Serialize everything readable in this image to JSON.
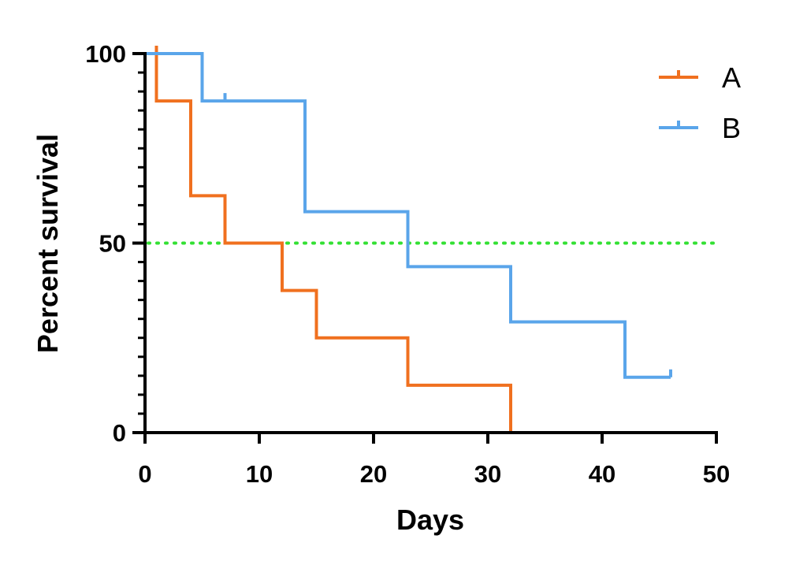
{
  "chart_data": {
    "type": "line",
    "subtype": "kaplan-meier-step",
    "title": "",
    "xlabel": "Days",
    "ylabel": "Percent survival",
    "xlim": [
      0,
      50
    ],
    "ylim": [
      0,
      100
    ],
    "x_ticks": [
      0,
      10,
      20,
      30,
      40,
      50
    ],
    "y_ticks": [
      0,
      50,
      100
    ],
    "x_tick_labels": [
      "0",
      "10",
      "20",
      "30",
      "40",
      "50"
    ],
    "y_tick_labels": [
      "0",
      "50",
      "100"
    ],
    "x_minor_ticks": [],
    "y_minor_ticks": [
      5,
      10,
      15,
      20,
      25,
      30,
      35,
      40,
      45,
      55,
      60,
      65,
      70,
      75,
      80,
      85,
      90,
      95
    ],
    "grid": false,
    "legend_position": "top-right",
    "reference_line": {
      "y": 50,
      "style": "dotted",
      "color": "#33e033",
      "x_start": 0,
      "x_end": 50
    },
    "series": [
      {
        "name": "A",
        "color": "#f0701f",
        "steps": [
          [
            0,
            100
          ],
          [
            1,
            87.5
          ],
          [
            4,
            62.5
          ],
          [
            7,
            50
          ],
          [
            12,
            37.5
          ],
          [
            15,
            25
          ],
          [
            23,
            12.5
          ],
          [
            32,
            0
          ]
        ],
        "censored": [
          [
            1,
            100
          ]
        ]
      },
      {
        "name": "B",
        "color": "#5aa5ea",
        "steps": [
          [
            0,
            100
          ],
          [
            5,
            87.5
          ],
          [
            14,
            58.3
          ],
          [
            23,
            43.8
          ],
          [
            32,
            29.2
          ],
          [
            42,
            14.6
          ],
          [
            46,
            14.6
          ]
        ],
        "censored": [
          [
            7,
            87.5
          ],
          [
            46,
            14.6
          ]
        ]
      }
    ]
  }
}
